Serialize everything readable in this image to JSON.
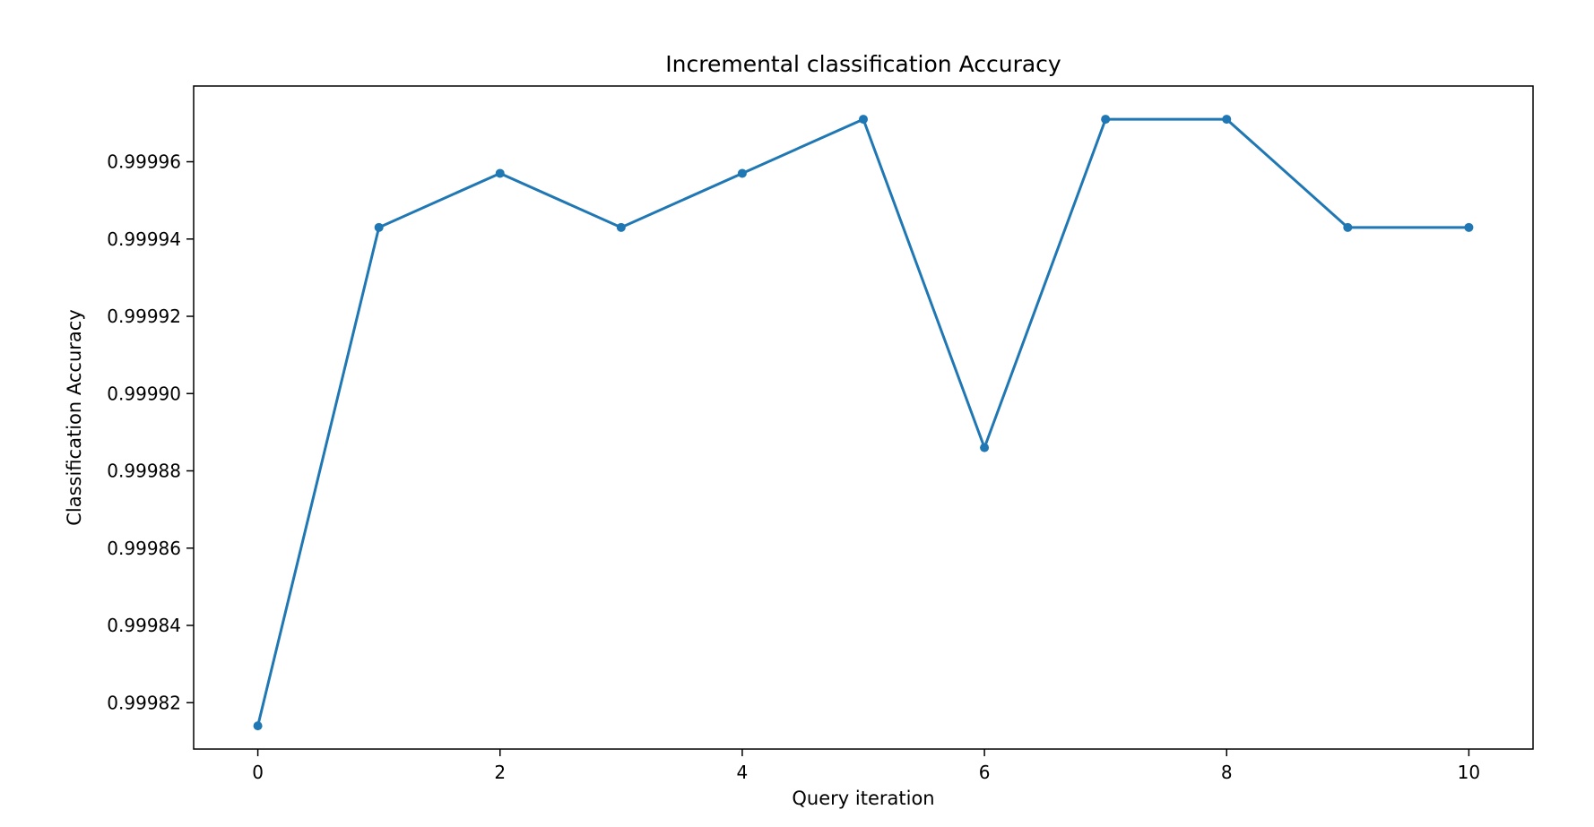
{
  "chart_data": {
    "type": "line",
    "title": "Incremental classification Accuracy",
    "xlabel": "Query iteration",
    "ylabel": "Classification Accuracy",
    "x": [
      0,
      1,
      2,
      3,
      4,
      5,
      6,
      7,
      8,
      9,
      10
    ],
    "series": [
      {
        "values": [
          0.999814,
          0.999943,
          0.999957,
          0.999943,
          0.999957,
          0.999971,
          0.999886,
          0.999971,
          0.999971,
          0.999943,
          0.999943
        ],
        "color": "#1f77b4",
        "marker": "circle"
      }
    ],
    "xlim": [
      -0.53,
      10.53
    ],
    "ylim": [
      0.999808,
      0.9999796
    ],
    "xticks": [
      0,
      2,
      4,
      6,
      8,
      10
    ],
    "xtick_labels": [
      "0",
      "2",
      "4",
      "6",
      "8",
      "10"
    ],
    "yticks": [
      0.99982,
      0.99984,
      0.99986,
      0.99988,
      0.9999,
      0.99992,
      0.99994,
      0.99996
    ],
    "ytick_labels": [
      "0.99982",
      "0.99984",
      "0.99986",
      "0.99988",
      "0.99990",
      "0.99992",
      "0.99994",
      "0.99996"
    ],
    "grid": false,
    "legend": "none"
  }
}
